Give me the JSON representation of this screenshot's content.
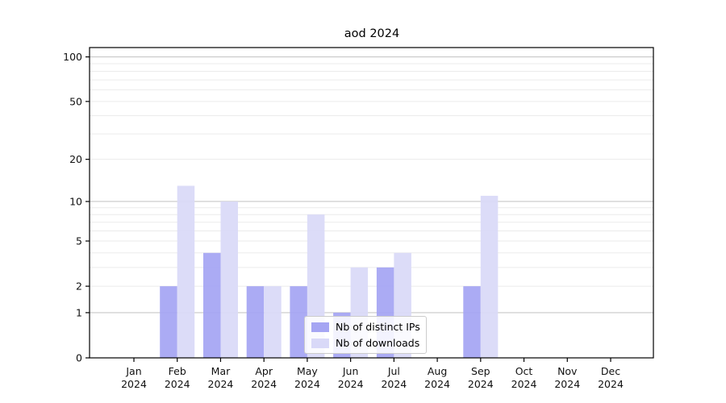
{
  "chart_data": {
    "type": "bar",
    "title": "aod 2024",
    "categories": [
      "Jan",
      "Feb",
      "Mar",
      "Apr",
      "May",
      "Jun",
      "Jul",
      "Aug",
      "Sep",
      "Oct",
      "Nov",
      "Dec"
    ],
    "xtick_second_line": "2024",
    "series": [
      {
        "name": "Nb of distinct IPs",
        "color": "#a5a5f3",
        "values": [
          0,
          2,
          4,
          2,
          2,
          1,
          3,
          0,
          2,
          0,
          0,
          0
        ]
      },
      {
        "name": "Nb of downloads",
        "color": "#d9d9f8",
        "values": [
          0,
          13,
          10,
          2,
          8,
          3,
          4,
          0,
          11,
          0,
          0,
          0
        ]
      }
    ],
    "xlabel": "",
    "ylabel": "",
    "yscale": "log1p",
    "ylim": [
      0,
      116
    ],
    "yticks": [
      0,
      1,
      2,
      5,
      10,
      20,
      50,
      100
    ],
    "grid": {
      "major_lines": [
        1,
        10,
        100
      ],
      "minor_lines": [
        2,
        3,
        4,
        5,
        6,
        7,
        8,
        9,
        20,
        30,
        40,
        50,
        60,
        70,
        80,
        90
      ],
      "major_color": "#c8c8c8",
      "minor_color": "#ebebeb"
    },
    "legend_position": "lower center inside plot",
    "frame_color": "#000000",
    "text_color": "#111111"
  }
}
